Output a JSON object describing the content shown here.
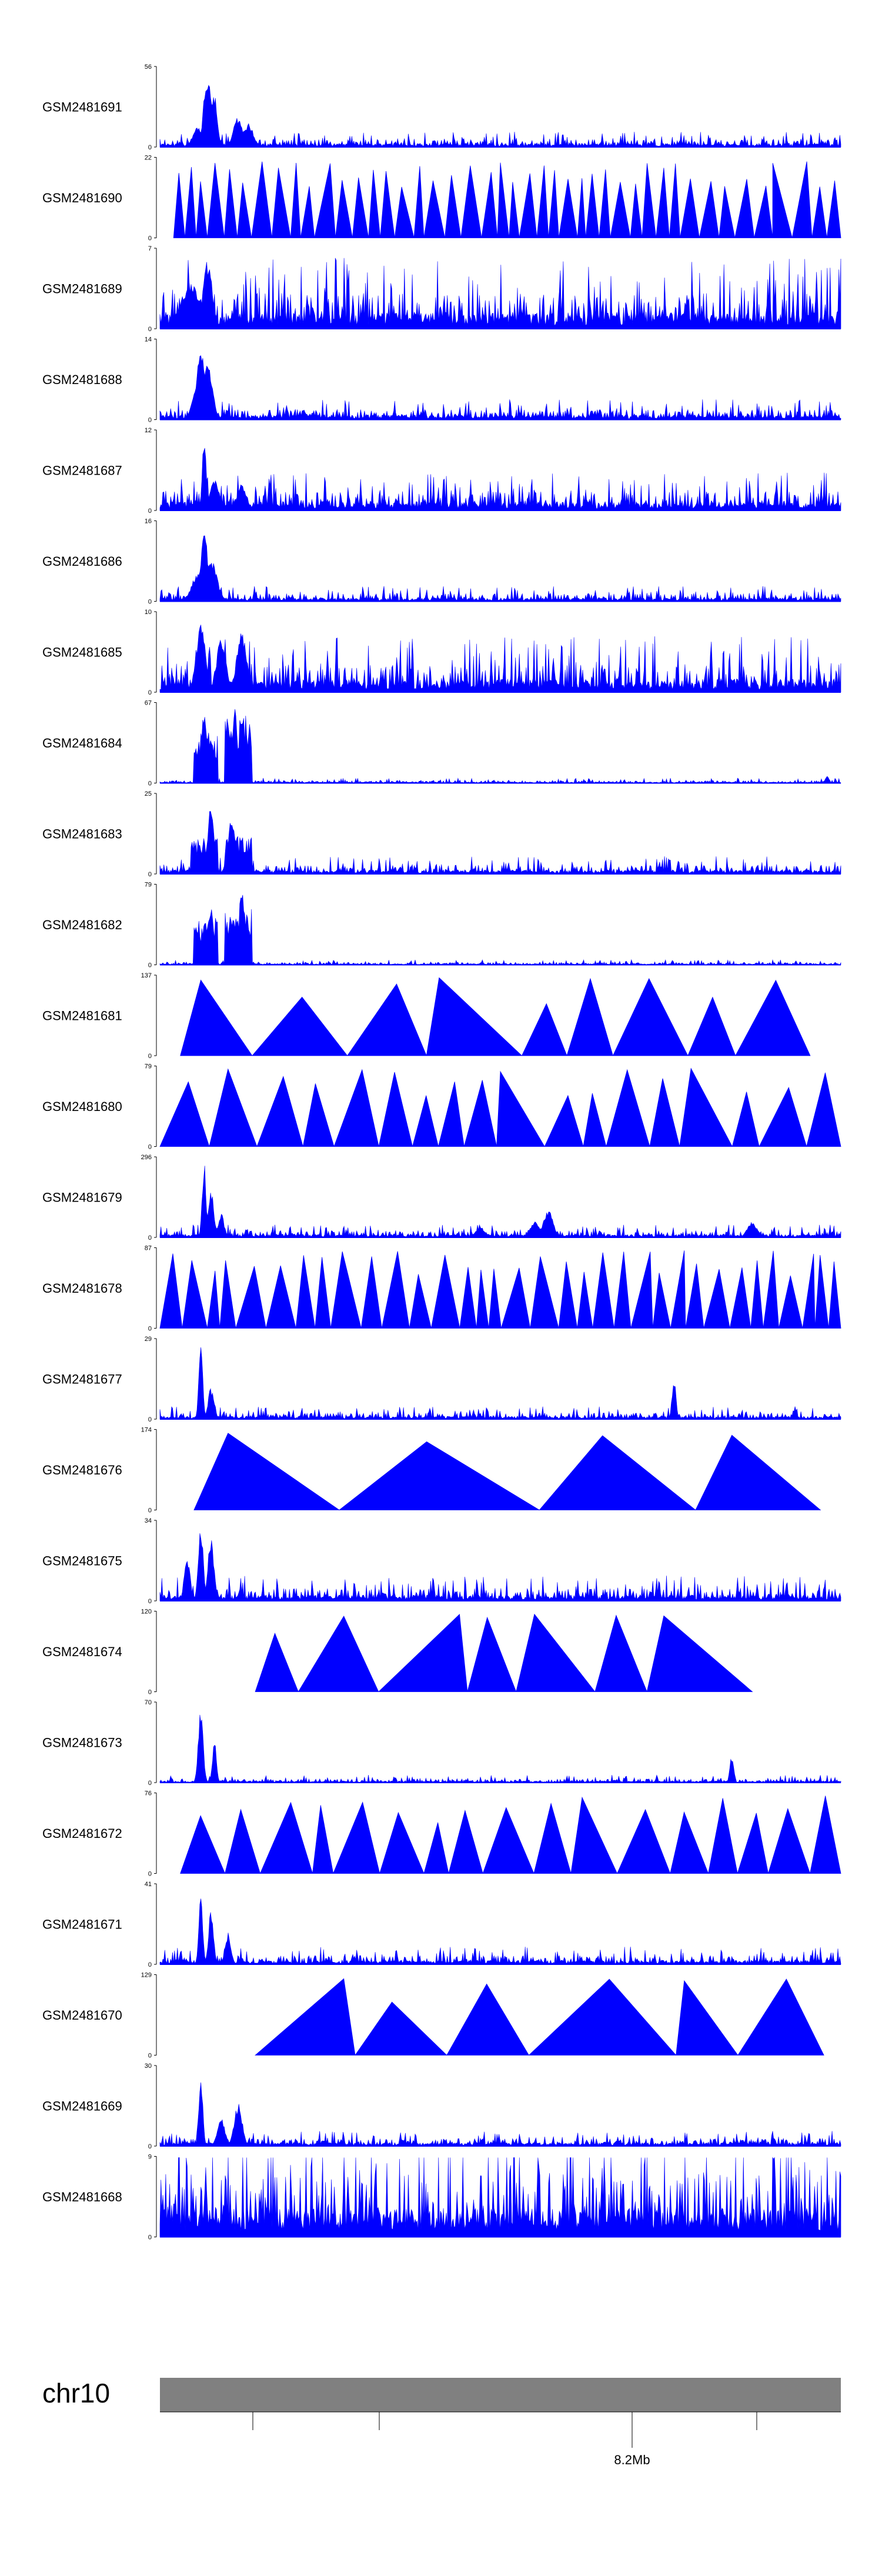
{
  "chart_data": {
    "type": "area",
    "title": "",
    "fill_color": "#0000FF",
    "ideogram_color": "#808080",
    "chromosome": "chr10",
    "position_labels": [
      "8.2Mb"
    ],
    "tracks": [
      {
        "name": "GSM2481691",
        "ymax": 56,
        "ymin": 0,
        "style": "dense",
        "seed": 11,
        "base": 0.06,
        "peaks": [
          [
            0.07,
            0.95,
            0.008
          ],
          [
            0.08,
            0.7,
            0.006
          ],
          [
            0.115,
            0.38,
            0.01
          ],
          [
            0.13,
            0.3,
            0.01
          ],
          [
            0.055,
            0.25,
            0.01
          ]
        ]
      },
      {
        "name": "GSM2481690",
        "ymax": 22,
        "ymin": 0,
        "style": "triangles",
        "seed": 21,
        "start": 0.02,
        "end": 1.0,
        "count": 44,
        "tall": [
          0.15,
          0.25,
          0.5,
          0.9,
          0.95
        ]
      },
      {
        "name": "GSM2481689",
        "ymax": 7,
        "ymin": 0,
        "style": "dense",
        "seed": 31,
        "base": 0.28,
        "peaks": [
          [
            0.07,
            0.85,
            0.01
          ],
          [
            0.045,
            0.6,
            0.02
          ]
        ]
      },
      {
        "name": "GSM2481688",
        "ymax": 14,
        "ymin": 0,
        "style": "dense",
        "seed": 41,
        "base": 0.08,
        "peaks": [
          [
            0.06,
            0.95,
            0.008
          ],
          [
            0.07,
            0.7,
            0.01
          ],
          [
            0.055,
            0.45,
            0.01
          ]
        ]
      },
      {
        "name": "GSM2481687",
        "ymax": 12,
        "ymin": 0,
        "style": "dense",
        "seed": 51,
        "base": 0.15,
        "peaks": [
          [
            0.065,
            0.95,
            0.004
          ],
          [
            0.08,
            0.4,
            0.01
          ],
          [
            0.12,
            0.35,
            0.01
          ]
        ]
      },
      {
        "name": "GSM2481686",
        "ymax": 16,
        "ymin": 0,
        "style": "dense",
        "seed": 61,
        "base": 0.06,
        "peaks": [
          [
            0.065,
            0.95,
            0.007
          ],
          [
            0.075,
            0.55,
            0.012
          ],
          [
            0.055,
            0.35,
            0.012
          ]
        ]
      },
      {
        "name": "GSM2481685",
        "ymax": 10,
        "ymin": 0,
        "style": "dense",
        "seed": 71,
        "base": 0.22,
        "peaks": [
          [
            0.06,
            0.85,
            0.01
          ],
          [
            0.12,
            0.8,
            0.01
          ],
          [
            0.09,
            0.7,
            0.01
          ]
        ]
      },
      {
        "name": "GSM2481684",
        "ymax": 67,
        "ymin": 0,
        "style": "blocks",
        "seed": 81,
        "base": 0.02,
        "blocks": [
          [
            0.05,
            0.085,
            0.65
          ],
          [
            0.095,
            0.135,
            0.85
          ]
        ],
        "peaks": [
          [
            0.065,
            0.9,
            0.006
          ],
          [
            0.11,
            0.95,
            0.006
          ],
          [
            0.98,
            0.1,
            0.004
          ]
        ]
      },
      {
        "name": "GSM2481683",
        "ymax": 25,
        "ymin": 0,
        "style": "blocks",
        "seed": 91,
        "base": 0.07,
        "blocks": [
          [
            0.045,
            0.085,
            0.45
          ],
          [
            0.095,
            0.135,
            0.5
          ]
        ],
        "peaks": [
          [
            0.075,
            0.9,
            0.006
          ],
          [
            0.105,
            0.7,
            0.008
          ]
        ]
      },
      {
        "name": "GSM2481682",
        "ymax": 79,
        "ymin": 0,
        "style": "blocks",
        "seed": 101,
        "base": 0.02,
        "blocks": [
          [
            0.05,
            0.085,
            0.6
          ],
          [
            0.095,
            0.135,
            0.7
          ]
        ],
        "peaks": [
          [
            0.075,
            0.75,
            0.006
          ],
          [
            0.12,
            0.95,
            0.006
          ]
        ]
      },
      {
        "name": "GSM2481681",
        "ymax": 137,
        "ymin": 0,
        "style": "triangles",
        "seed": 111,
        "start": 0.03,
        "end": 0.955,
        "count": 9,
        "tall": [
          0.06,
          0.41
        ]
      },
      {
        "name": "GSM2481680",
        "ymax": 79,
        "ymin": 0,
        "style": "triangles",
        "seed": 121,
        "start": 0.0,
        "end": 1.0,
        "count": 18,
        "tall": [
          0.1,
          0.5,
          0.78
        ]
      },
      {
        "name": "GSM2481679",
        "ymax": 296,
        "ymin": 0,
        "style": "dense",
        "seed": 131,
        "base": 0.05,
        "peaks": [
          [
            0.065,
            0.95,
            0.004
          ],
          [
            0.075,
            0.6,
            0.006
          ],
          [
            0.09,
            0.3,
            0.006
          ],
          [
            0.57,
            0.35,
            0.01
          ],
          [
            0.55,
            0.2,
            0.01
          ],
          [
            0.47,
            0.12,
            0.01
          ],
          [
            0.87,
            0.2,
            0.01
          ]
        ]
      },
      {
        "name": "GSM2481678",
        "ymax": 87,
        "ymin": 0,
        "style": "triangles",
        "seed": 141,
        "start": 0.0,
        "end": 1.0,
        "count": 34,
        "tall": [
          0.72,
          0.77,
          0.96
        ]
      },
      {
        "name": "GSM2481677",
        "ymax": 29,
        "ymin": 0,
        "style": "dense",
        "seed": 151,
        "base": 0.05,
        "peaks": [
          [
            0.06,
            0.95,
            0.004
          ],
          [
            0.075,
            0.4,
            0.006
          ],
          [
            0.755,
            0.55,
            0.004
          ]
        ]
      },
      {
        "name": "GSM2481676",
        "ymax": 174,
        "ymin": 0,
        "style": "triangles",
        "seed": 161,
        "start": 0.05,
        "end": 0.97,
        "count": 4,
        "tall": [
          0.1,
          0.65,
          0.84,
          0.98
        ]
      },
      {
        "name": "GSM2481675",
        "ymax": 34,
        "ymin": 0,
        "style": "dense",
        "seed": 171,
        "base": 0.1,
        "peaks": [
          [
            0.06,
            0.95,
            0.005
          ],
          [
            0.075,
            0.85,
            0.006
          ],
          [
            0.04,
            0.55,
            0.006
          ]
        ]
      },
      {
        "name": "GSM2481674",
        "ymax": 120,
        "ymin": 0,
        "style": "triangles",
        "seed": 181,
        "start": 0.14,
        "end": 0.87,
        "count": 7,
        "tall": [
          0.22,
          0.27,
          0.44,
          0.55,
          0.67,
          0.74
        ]
      },
      {
        "name": "GSM2481673",
        "ymax": 70,
        "ymin": 0,
        "style": "dense",
        "seed": 191,
        "base": 0.03,
        "peaks": [
          [
            0.06,
            0.95,
            0.005
          ],
          [
            0.08,
            0.55,
            0.004
          ],
          [
            0.84,
            0.35,
            0.004
          ]
        ]
      },
      {
        "name": "GSM2481672",
        "ymax": 76,
        "ymin": 0,
        "style": "triangles",
        "seed": 201,
        "start": 0.03,
        "end": 1.0,
        "count": 17,
        "tall": [
          0.62
        ]
      },
      {
        "name": "GSM2481671",
        "ymax": 41,
        "ymin": 0,
        "style": "dense",
        "seed": 211,
        "base": 0.07,
        "peaks": [
          [
            0.06,
            0.95,
            0.004
          ],
          [
            0.075,
            0.7,
            0.005
          ],
          [
            0.1,
            0.4,
            0.006
          ]
        ]
      },
      {
        "name": "GSM2481670",
        "ymax": 129,
        "ymin": 0,
        "style": "triangles",
        "seed": 221,
        "start": 0.14,
        "end": 0.975,
        "count": 6,
        "tall": [
          0.27,
          0.57,
          0.66,
          0.77,
          0.92
        ]
      },
      {
        "name": "GSM2481669",
        "ymax": 30,
        "ymin": 0,
        "style": "dense",
        "seed": 231,
        "base": 0.06,
        "peaks": [
          [
            0.06,
            0.95,
            0.004
          ],
          [
            0.115,
            0.55,
            0.008
          ],
          [
            0.09,
            0.35,
            0.008
          ]
        ]
      },
      {
        "name": "GSM2481668",
        "ymax": 9,
        "ymin": 0,
        "style": "dense",
        "seed": 241,
        "base": 0.5,
        "peaks": []
      }
    ]
  }
}
